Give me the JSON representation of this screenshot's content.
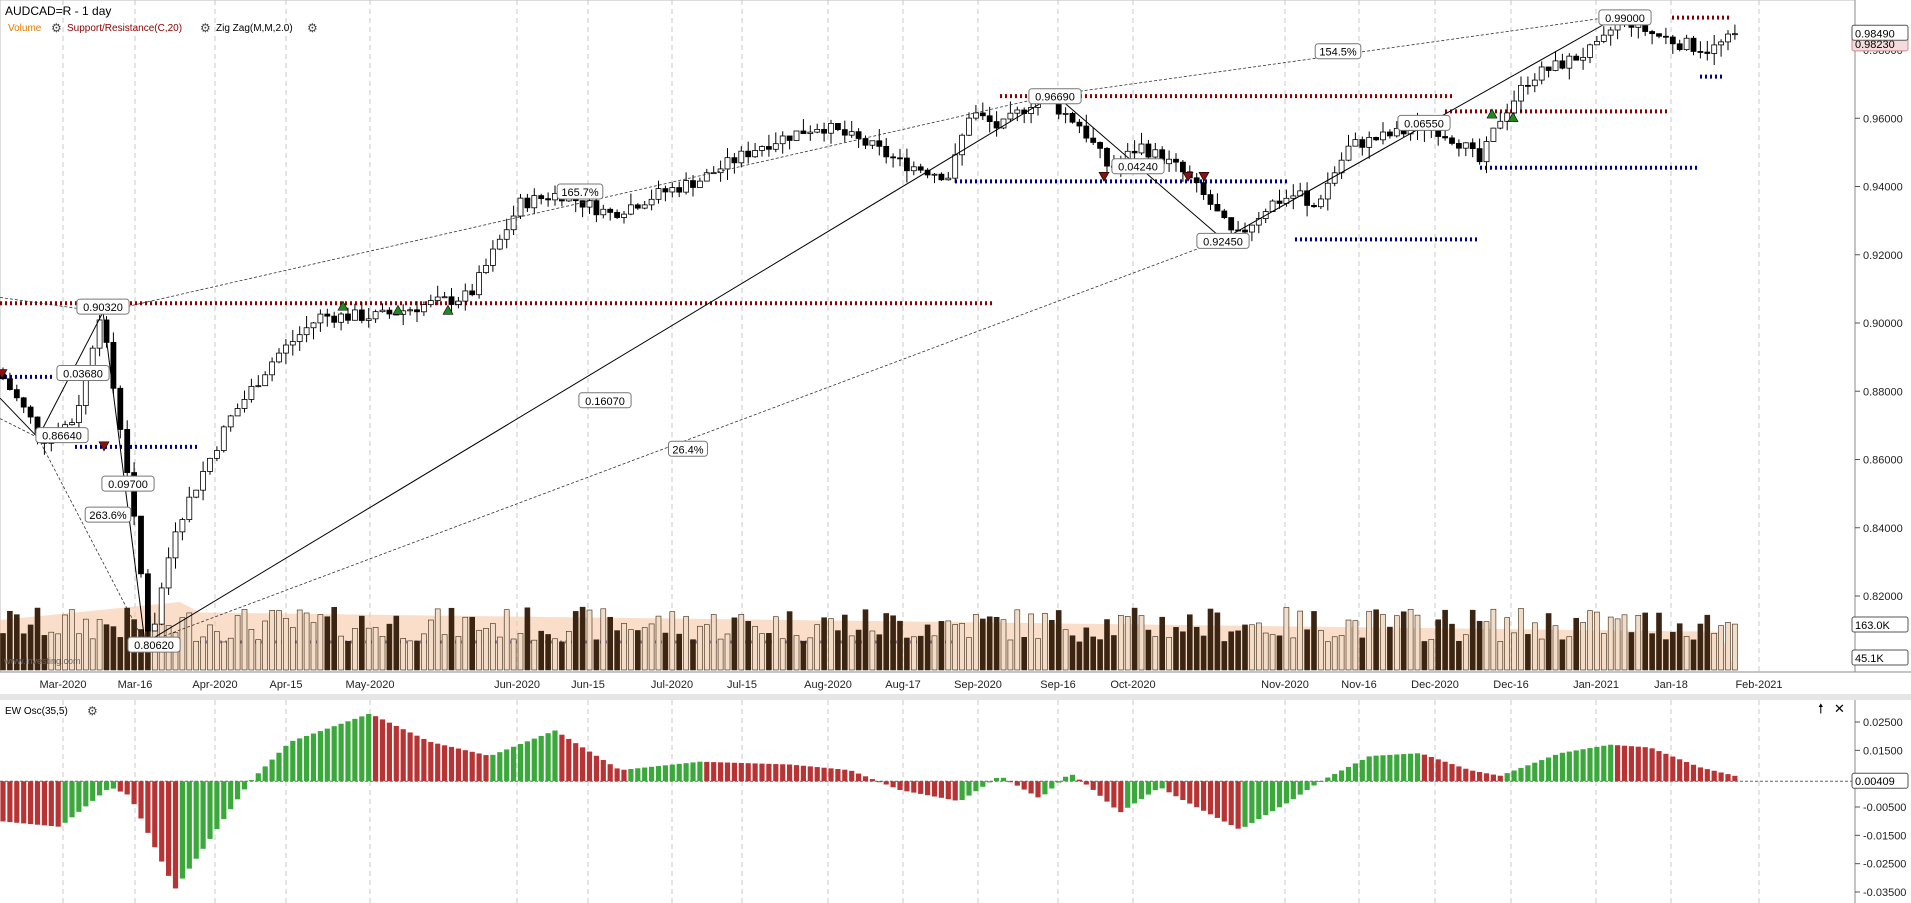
{
  "title": "AUDCAD=R - 1 day",
  "legend": {
    "volume": "Volume",
    "support_resistance": "Support/Resistance(C,20)",
    "zigzag": "Zig Zag(M,M,2.0)",
    "gear_icon": "gear-icon"
  },
  "watermark": "www.investing.com",
  "colors": {
    "up_candle": "#ffffff",
    "down_candle": "#000000",
    "resistance": "#8b0000",
    "support": "#00008b",
    "volume_area": "#f6c8a6",
    "volume_line": "#e07a3a",
    "osc_up": "#3aa83a",
    "osc_down": "#b83434"
  },
  "chart_data": [
    {
      "type": "candlestick",
      "name": "price",
      "y_ticks": [
        "0.98000",
        "0.96000",
        "0.94000",
        "0.92000",
        "0.90000",
        "0.88000",
        "0.86000",
        "0.84000",
        "0.82000"
      ],
      "y_range": [
        0.805,
        0.993
      ],
      "last_price": "0.98490",
      "last_price_2": "0.98230",
      "x_labels": [
        "Mar-2020",
        "Mar-16",
        "Apr-2020",
        "Apr-15",
        "May-2020",
        "Jun-2020",
        "Jun-15",
        "Jul-2020",
        "Jul-15",
        "Aug-2020",
        "Aug-17",
        "Sep-2020",
        "Sep-16",
        "Oct-2020",
        "Nov-2020",
        "Nov-16",
        "Dec-2020",
        "Dec-16",
        "Jan-2021",
        "Jan-18",
        "Feb-2021"
      ],
      "zigzag_points": [
        {
          "label": "0.86640",
          "value": 0.8664
        },
        {
          "label": "0.90320",
          "value": 0.9032
        },
        {
          "label": "0.80620",
          "value": 0.8062
        },
        {
          "label": "0.96690",
          "value": 0.9669
        },
        {
          "label": "0.92450",
          "value": 0.9245
        },
        {
          "label": "0.99000",
          "value": 0.99
        }
      ],
      "zigzag_labels": [
        "0.03680",
        "0.09700",
        "0.16070",
        "0.04240",
        "0.06550"
      ],
      "retracement_labels": [
        "263.6%",
        "165.7%",
        "26.4%",
        "154.5%"
      ],
      "resistance_levels": [
        0.9058,
        0.9665,
        0.9675,
        0.962,
        0.9895
      ],
      "support_levels": [
        0.8842,
        0.8637,
        0.9415,
        0.9245,
        0.9455,
        0.9722
      ]
    },
    {
      "type": "bar",
      "name": "volume",
      "y_ticks": [
        "163.0K",
        "45.1K"
      ]
    },
    {
      "type": "bar",
      "name": "EW Osc(35,5)",
      "title": "EW Osc(35,5)",
      "y_ticks": [
        "0.02500",
        "0.01500",
        "0.00409",
        "-0.00500",
        "-0.01500",
        "-0.02500",
        "-0.03500"
      ],
      "last_value": "0.00409",
      "y_range": [
        -0.037,
        0.03
      ]
    }
  ]
}
